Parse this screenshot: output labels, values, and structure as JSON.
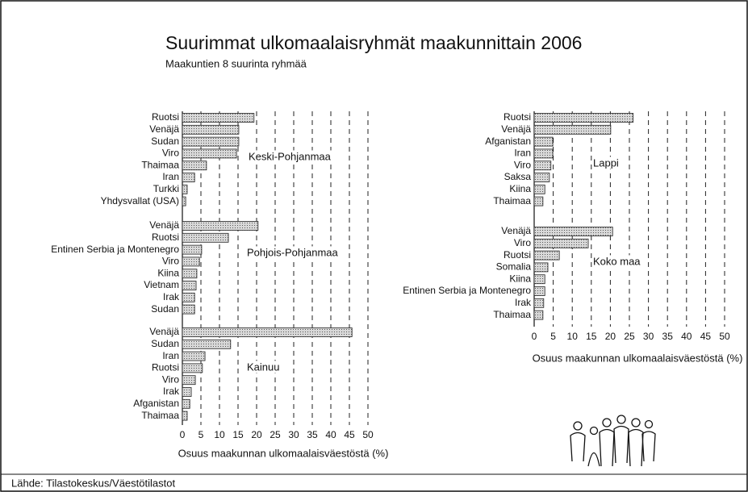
{
  "title": "Suurimmat ulkomaalaisryhmät maakunnittain 2006",
  "subtitle": "Maakuntien 8 suurinta ryhmää",
  "source": "Lähde: Tilastokeskus/Väestötilastot",
  "chart_data": [
    {
      "type": "bar",
      "orientation": "horizontal",
      "color": "#c4c4c4",
      "xlabel": "Osuus maakunnan ulkomaalaisväestöstä (%)",
      "xlim": [
        0,
        50
      ],
      "xticks": [
        0,
        5,
        10,
        15,
        20,
        25,
        30,
        35,
        40,
        45,
        50
      ],
      "grid": true,
      "groups": [
        {
          "name": "Keski-Pohjanmaa",
          "categories": [
            "Ruotsi",
            "Venäjä",
            "Sudan",
            "Viro",
            "Thaimaa",
            "Iran",
            "Turkki",
            "Yhdysvallat (USA)"
          ],
          "values": [
            19.3,
            15.2,
            15.2,
            14.6,
            6.5,
            3.3,
            1.3,
            0.9
          ]
        },
        {
          "name": "Pohjois-Pohjanmaa",
          "categories": [
            "Venäjä",
            "Ruotsi",
            "Entinen Serbia ja Montenegro",
            "Viro",
            "Kiina",
            "Vietnam",
            "Irak",
            "Sudan"
          ],
          "values": [
            20.4,
            12.4,
            5.2,
            4.6,
            3.9,
            3.7,
            3.3,
            3.3
          ]
        },
        {
          "name": "Kainuu",
          "categories": [
            "Venäjä",
            "Sudan",
            "Iran",
            "Ruotsi",
            "Viro",
            "Irak",
            "Afganistan",
            "Thaimaa"
          ],
          "values": [
            45.7,
            13,
            6.1,
            5.4,
            3.5,
            2.4,
            2,
            1.3
          ]
        }
      ]
    },
    {
      "type": "bar",
      "orientation": "horizontal",
      "color": "#c4c4c4",
      "xlabel": "Osuus maakunnan ulkomaalaisväestöstä (%)",
      "xlim": [
        0,
        50
      ],
      "xticks": [
        0,
        5,
        10,
        15,
        20,
        25,
        30,
        35,
        40,
        45,
        50
      ],
      "grid": true,
      "groups": [
        {
          "name": "Lappi",
          "categories": [
            "Ruotsi",
            "Venäjä",
            "Afganistan",
            "Iran",
            "Viro",
            "Saksa",
            "Kiina",
            "Thaimaa"
          ],
          "values": [
            26,
            20.1,
            4.9,
            4.9,
            4.4,
            4,
            2.8,
            2.3
          ]
        },
        {
          "name": "Koko maa",
          "categories": [
            "Venäjä",
            "Viro",
            "Ruotsi",
            "Somalia",
            "Kiina",
            "Entinen Serbia ja Montenegro",
            "Irak",
            "Thaimaa"
          ],
          "values": [
            20.6,
            14.2,
            6.6,
            3.6,
            2.8,
            2.8,
            2.5,
            2.3
          ]
        }
      ]
    }
  ]
}
